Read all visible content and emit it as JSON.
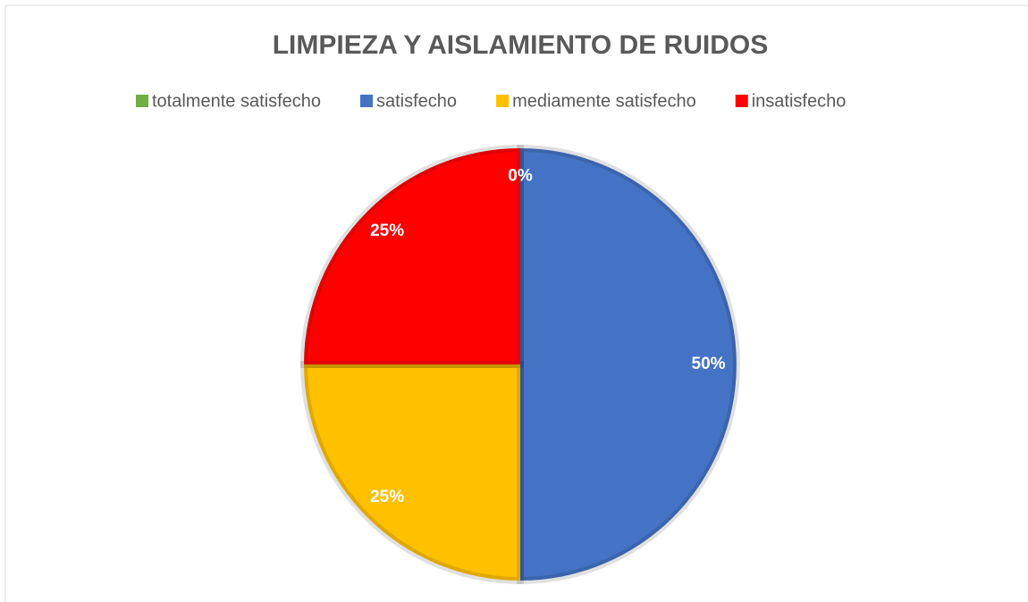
{
  "chart_data": {
    "type": "pie",
    "title": "LIMPIEZA Y AISLAMIENTO DE RUIDOS",
    "categories": [
      "totalmente satisfecho",
      "satisfecho",
      "mediamente satisfecho",
      "insatisfecho"
    ],
    "values": [
      0,
      50,
      25,
      25
    ],
    "value_labels": [
      "0%",
      "50%",
      "25%",
      "25%"
    ],
    "colors": [
      "#70ad47",
      "#4472c4",
      "#ffc000",
      "#ff0000"
    ],
    "legend": "top"
  }
}
